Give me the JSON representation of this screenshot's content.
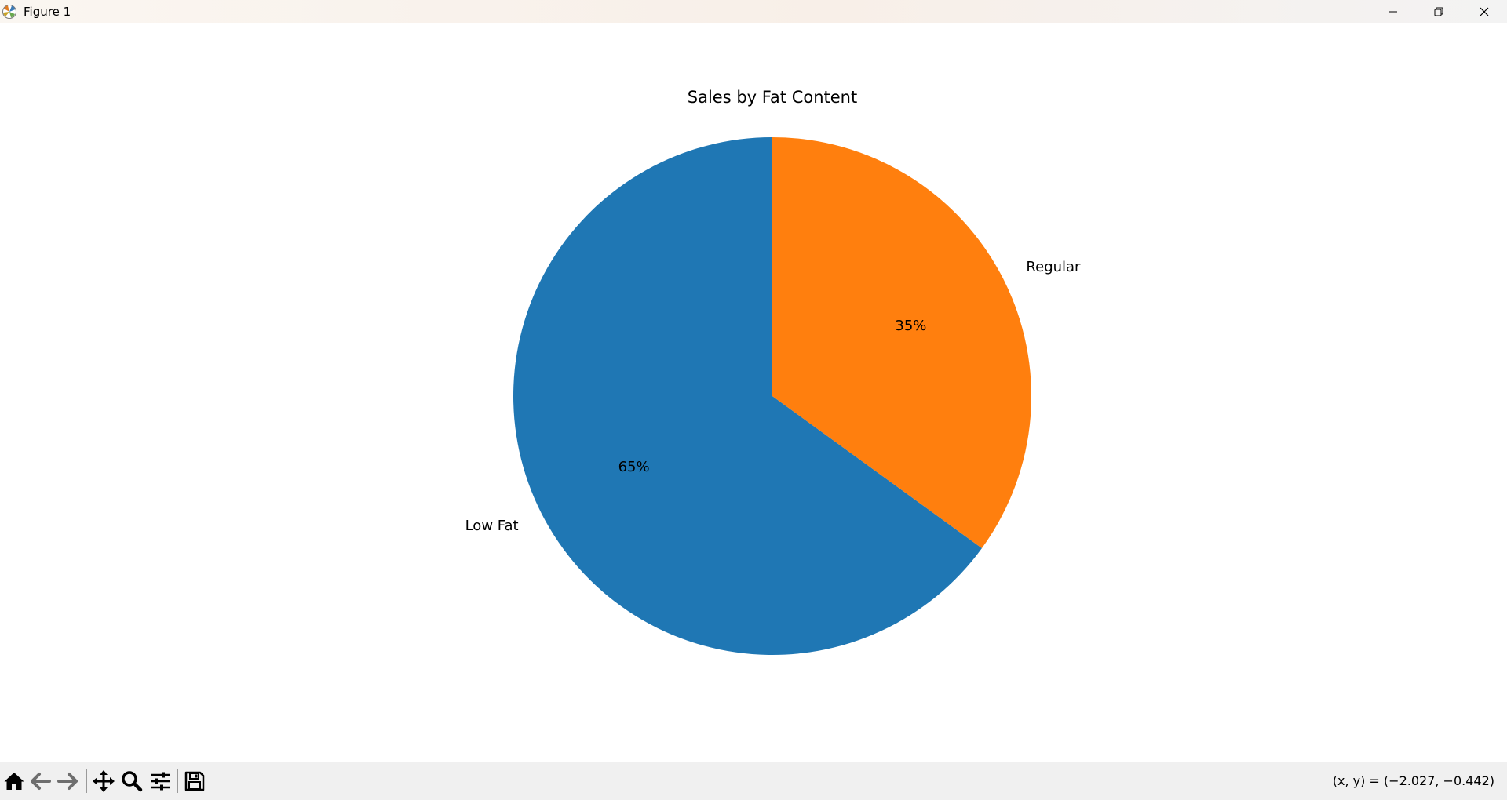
{
  "window": {
    "title": "Figure 1"
  },
  "toolbar": {
    "buttons": [
      {
        "name": "home-icon"
      },
      {
        "name": "back-icon"
      },
      {
        "name": "forward-icon"
      },
      {
        "name": "pan-icon"
      },
      {
        "name": "zoom-icon"
      },
      {
        "name": "configure-subplots-icon"
      },
      {
        "name": "save-icon"
      }
    ],
    "coords_text": "(x, y) = (−2.027, −0.442)"
  },
  "colors": {
    "low_fat": "#1f77b4",
    "regular": "#ff7f0e",
    "toolbar_bg": "#f0f0f0"
  },
  "chart_data": {
    "type": "pie",
    "title": "Sales by Fat Content",
    "categories": [
      "Low Fat",
      "Regular"
    ],
    "values": [
      65,
      35
    ],
    "autopct_labels": [
      "65%",
      "35%"
    ],
    "colors": [
      "#1f77b4",
      "#ff7f0e"
    ],
    "start_angle_deg": 90,
    "direction": "counterclockwise",
    "legend": "none"
  }
}
